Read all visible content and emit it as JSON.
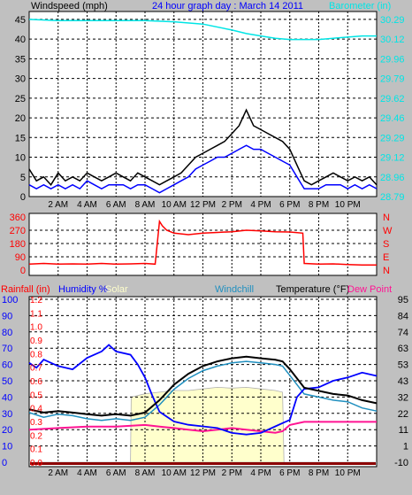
{
  "header": {
    "wind_label": "Windspeed (mph)",
    "title": "24 hour graph day : March 14 2011",
    "baro_label": "Barometer (in)"
  },
  "x_labels": [
    "2 AM",
    "4 AM",
    "6 AM",
    "8 AM",
    "10 AM",
    "12 PM",
    "2 PM",
    "4 PM",
    "6 PM",
    "8 PM",
    "10 PM"
  ],
  "colors": {
    "wind": "#000000",
    "wind_gust": "#0000ff",
    "wind_dir_line": "#ff0000",
    "baro": "#00e5e5",
    "rain": "#ff0000",
    "humidity": "#0000ff",
    "solar": "#ffffcc",
    "windchill": "#1f8fbf",
    "temperature": "#000000",
    "dewpoint": "#ff1493",
    "panel_bg": "#ffffff",
    "grid": "#000000"
  },
  "chart_data": [
    {
      "type": "line",
      "name": "wind-barometer",
      "title": "24 hour graph day : March 14 2011",
      "y_left_label": "Windspeed (mph)",
      "y_right_label": "Barometer (in)",
      "y_left_ticks": [
        0,
        5,
        10,
        15,
        20,
        25,
        30,
        35,
        40,
        45
      ],
      "y_right_ticks": [
        "28.79",
        "28.96",
        "29.12",
        "29.29",
        "29.46",
        "29.62",
        "29.79",
        "29.96",
        "30.12",
        "30.29"
      ],
      "ylim": [
        0,
        47
      ],
      "series": [
        {
          "name": "Windspeed",
          "color": "#000000",
          "x": [
            0,
            0.5,
            1,
            1.5,
            2,
            2.5,
            3,
            3.5,
            4,
            4.5,
            5,
            5.5,
            6,
            6.5,
            7,
            7.5,
            8,
            8.5,
            9,
            9.5,
            10,
            10.5,
            11,
            11.5,
            12,
            12.5,
            13,
            13.5,
            14,
            14.5,
            15,
            15.5,
            16,
            16.5,
            17,
            17.5,
            18,
            18.5,
            19,
            19.5,
            20,
            20.5,
            21,
            21.5,
            22,
            22.5,
            23,
            23.5,
            24
          ],
          "values": [
            7,
            4,
            5,
            3,
            6,
            4,
            5,
            4,
            6,
            5,
            4,
            5,
            6,
            5,
            4,
            6,
            5,
            4,
            3,
            4,
            5,
            6,
            8,
            10,
            11,
            12,
            13,
            14,
            16,
            18,
            22,
            18,
            17,
            16,
            15,
            14,
            12,
            8,
            4,
            3,
            4,
            5,
            6,
            5,
            4,
            5,
            4,
            5,
            3
          ]
        },
        {
          "name": "Gust",
          "color": "#0000ff",
          "x": [
            0,
            0.5,
            1,
            1.5,
            2,
            2.5,
            3,
            3.5,
            4,
            4.5,
            5,
            5.5,
            6,
            6.5,
            7,
            7.5,
            8,
            8.5,
            9,
            9.5,
            10,
            10.5,
            11,
            11.5,
            12,
            12.5,
            13,
            13.5,
            14,
            14.5,
            15,
            15.5,
            16,
            16.5,
            17,
            17.5,
            18,
            18.5,
            19,
            19.5,
            20,
            20.5,
            21,
            21.5,
            22,
            22.5,
            23,
            23.5,
            24
          ],
          "values": [
            3,
            2,
            3,
            2,
            3,
            2,
            3,
            2,
            4,
            3,
            2,
            3,
            3,
            3,
            2,
            3,
            3,
            2,
            1,
            2,
            3,
            4,
            5,
            7,
            8,
            9,
            10,
            10,
            11,
            12,
            13,
            12,
            12,
            11,
            10,
            9,
            8,
            5,
            2,
            2,
            2,
            3,
            3,
            3,
            2,
            3,
            2,
            3,
            2
          ]
        },
        {
          "name": "Barometer",
          "color": "#00e5e5",
          "axis": "right",
          "x": [
            0,
            2,
            4,
            6,
            8,
            10,
            12,
            14,
            15,
            16,
            17,
            18,
            19,
            20,
            21,
            22,
            23,
            24
          ],
          "values": [
            30.29,
            30.28,
            30.28,
            30.28,
            30.28,
            30.27,
            30.25,
            30.2,
            30.17,
            30.15,
            30.13,
            30.12,
            30.12,
            30.12,
            30.13,
            30.14,
            30.15,
            30.15
          ]
        }
      ]
    },
    {
      "type": "line",
      "name": "wind-direction",
      "y_left_ticks": [
        0,
        90,
        180,
        270,
        360
      ],
      "y_right_ticks": [
        "N",
        "E",
        "S",
        "W",
        "N"
      ],
      "ylim": [
        0,
        360
      ],
      "series": [
        {
          "name": "Wind direction",
          "color": "#ff0000",
          "x": [
            0,
            1,
            2,
            3,
            4,
            5,
            6,
            7,
            8,
            8.7,
            9,
            9.2,
            9.5,
            10,
            11,
            12,
            13,
            14,
            15,
            16,
            17,
            18,
            18.9,
            19,
            20,
            21,
            22,
            23,
            24
          ],
          "values": [
            40,
            45,
            40,
            42,
            40,
            45,
            40,
            42,
            45,
            40,
            330,
            300,
            270,
            250,
            240,
            250,
            255,
            260,
            270,
            265,
            260,
            258,
            250,
            45,
            40,
            42,
            38,
            35,
            35
          ]
        }
      ]
    },
    {
      "type": "line",
      "name": "rain-humidity-temperature",
      "y_left_label": "Rainfall (in)",
      "y_humidity_label": "Humidity %",
      "solar_label": "Solar",
      "windchill_label": "Windchill",
      "temperature_label": "Temperature (°F)",
      "dewpoint_label": "Dew Point",
      "y_rain_ticks": [
        "0.0",
        "0.1",
        "0.2",
        "0.3",
        "0.4",
        "0.5",
        "0.6",
        "0.7",
        "0.8",
        "0.9",
        "1.0",
        "1.1",
        "1.2"
      ],
      "y_humidity_ticks": [
        0,
        10,
        20,
        30,
        40,
        50,
        60,
        70,
        80,
        90,
        100
      ],
      "y_right_ticks": [
        -10,
        1,
        11,
        22,
        32,
        43,
        53,
        63,
        74,
        84,
        95
      ],
      "temp_lim": [
        -10,
        95
      ],
      "series": [
        {
          "name": "Solar",
          "color": "#ffffcc",
          "x": [
            0,
            7,
            7.05,
            8,
            9,
            10,
            11,
            12,
            13,
            14,
            15,
            16,
            17,
            17.5,
            17.6,
            18,
            24
          ],
          "values": [
            0,
            0,
            400,
            420,
            430,
            440,
            440,
            450,
            460,
            455,
            460,
            450,
            440,
            430,
            0,
            0,
            0
          ]
        },
        {
          "name": "Humidity",
          "color": "#0000ff",
          "x": [
            0,
            0.5,
            1,
            2,
            3,
            4,
            5,
            5.5,
            6,
            7,
            7.5,
            8,
            8.5,
            9,
            10,
            11,
            12,
            13,
            14,
            15,
            16,
            17,
            17.5,
            18,
            18.5,
            19,
            20,
            21,
            22,
            23,
            24
          ],
          "values": [
            61,
            58,
            63,
            59,
            57,
            64,
            68,
            72,
            68,
            66,
            60,
            52,
            41,
            31,
            25,
            23,
            22,
            21,
            18,
            17,
            18,
            22,
            24,
            26,
            40,
            45,
            46,
            50,
            52,
            55,
            53
          ]
        },
        {
          "name": "Temperature",
          "color": "#000000",
          "x": [
            0,
            1,
            2,
            3,
            4,
            5,
            6,
            7,
            8,
            9,
            10,
            11,
            12,
            13,
            14,
            15,
            16,
            17,
            17.5,
            18,
            19,
            20,
            21,
            22,
            23,
            24
          ],
          "values": [
            24,
            22,
            23,
            22,
            21,
            20,
            21,
            20,
            22,
            30,
            40,
            47,
            52,
            55,
            57,
            58,
            57,
            56,
            55,
            50,
            38,
            36,
            34,
            33,
            30,
            28
          ]
        },
        {
          "name": "Windchill",
          "color": "#1f8fbf",
          "x": [
            0,
            1,
            2,
            3,
            4,
            5,
            6,
            7,
            8,
            9,
            10,
            11,
            12,
            13,
            14,
            15,
            16,
            17,
            17.5,
            18,
            19,
            20,
            21,
            22,
            23,
            24
          ],
          "values": [
            22,
            19,
            21,
            20,
            18,
            17,
            18,
            17,
            19,
            27,
            37,
            44,
            49,
            52,
            54,
            55,
            54,
            53,
            52,
            46,
            34,
            32,
            30,
            29,
            25,
            23
          ]
        },
        {
          "name": "Dew Point",
          "color": "#ff1493",
          "x": [
            0,
            2,
            4,
            6,
            8,
            9,
            10,
            11,
            12,
            13,
            14,
            15,
            16,
            17,
            17.5,
            18,
            19,
            20,
            21,
            22,
            23,
            24
          ],
          "values": [
            11,
            12,
            13,
            13,
            14,
            13,
            12,
            11,
            10,
            11,
            12,
            11,
            10,
            9,
            10,
            14,
            16,
            16,
            16,
            16,
            16,
            16
          ]
        },
        {
          "name": "Rainfall",
          "color": "#ff0000",
          "x": [
            0,
            24
          ],
          "values": [
            0,
            0
          ]
        }
      ]
    }
  ]
}
